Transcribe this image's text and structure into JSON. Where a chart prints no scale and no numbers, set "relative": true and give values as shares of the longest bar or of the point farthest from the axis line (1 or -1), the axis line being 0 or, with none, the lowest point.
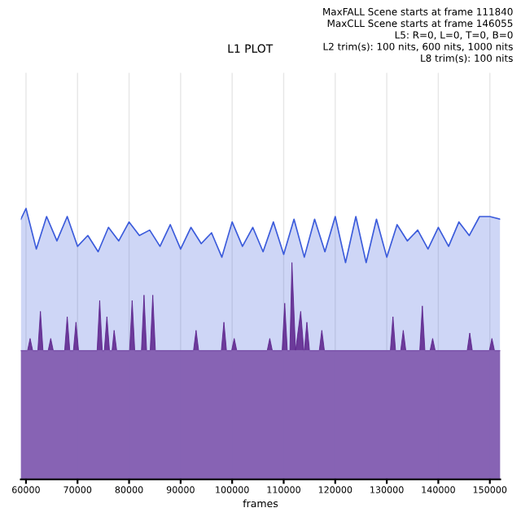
{
  "chart_data": {
    "type": "area",
    "title": "L1 PLOT",
    "xlabel": "frames",
    "relative": true,
    "grid": "x",
    "annotations": [
      "MaxFALL Scene starts at frame 111840",
      "MaxCLL Scene starts at frame 146055",
      "L5: R=0, L=0, T=0, B=0",
      "L2 trim(s): 100 nits, 600 nits, 1000 nits",
      "L8 trim(s): 100 nits"
    ],
    "xlim": [
      59000,
      152000
    ],
    "xticks": [
      60000,
      70000,
      80000,
      90000,
      100000,
      110000,
      120000,
      130000,
      140000,
      150000
    ],
    "series": [
      {
        "color": "#3b5bdb",
        "x": [
          59000,
          60000,
          62000,
          64000,
          66000,
          68000,
          70000,
          72000,
          74000,
          76000,
          78000,
          80000,
          82000,
          84000,
          86000,
          88000,
          90000,
          92000,
          94000,
          96000,
          98000,
          100000,
          102000,
          104000,
          106000,
          108000,
          110000,
          112000,
          114000,
          116000,
          118000,
          120000,
          122000,
          124000,
          126000,
          128000,
          130000,
          132000,
          134000,
          136000,
          138000,
          140000,
          142000,
          144000,
          146000,
          148000,
          150000,
          152000
        ],
        "values": [
          0.96,
          1,
          0.85,
          0.97,
          0.88,
          0.97,
          0.86,
          0.9,
          0.84,
          0.93,
          0.88,
          0.95,
          0.9,
          0.92,
          0.86,
          0.94,
          0.85,
          0.93,
          0.87,
          0.91,
          0.82,
          0.95,
          0.86,
          0.93,
          0.84,
          0.95,
          0.83,
          0.96,
          0.82,
          0.96,
          0.84,
          0.97,
          0.8,
          0.97,
          0.8,
          0.96,
          0.82,
          0.94,
          0.88,
          0.92,
          0.85,
          0.93,
          0.86,
          0.95,
          0.9,
          0.97,
          0.97,
          0.96
        ]
      },
      {
        "color": "#5a1f8a",
        "x": [
          59000,
          60300,
          60800,
          61300,
          62300,
          62800,
          63300,
          64300,
          64800,
          65300,
          67500,
          68000,
          68500,
          69200,
          69700,
          70200,
          73800,
          74300,
          74800,
          75200,
          75700,
          76200,
          76700,
          77100,
          77600,
          80100,
          80600,
          81100,
          82400,
          82900,
          83400,
          84100,
          84600,
          85100,
          92500,
          93000,
          93500,
          97900,
          98400,
          98900,
          99900,
          100400,
          100900,
          106800,
          107300,
          107800,
          109700,
          110200,
          110700,
          111200,
          111600,
          112300,
          113300,
          113900,
          114000,
          114500,
          115000,
          116900,
          117400,
          117900,
          130700,
          131200,
          131700,
          132700,
          133200,
          133700,
          136400,
          136900,
          137400,
          138400,
          138900,
          139400,
          145600,
          146100,
          146600,
          149900,
          150400,
          150900,
          152000
        ],
        "values": [
          0.475,
          0.475,
          0.52,
          0.475,
          0.475,
          0.62,
          0.475,
          0.475,
          0.52,
          0.475,
          0.475,
          0.6,
          0.475,
          0.475,
          0.58,
          0.475,
          0.475,
          0.66,
          0.475,
          0.475,
          0.6,
          0.475,
          0.475,
          0.55,
          0.475,
          0.475,
          0.66,
          0.475,
          0.475,
          0.68,
          0.475,
          0.475,
          0.68,
          0.475,
          0.475,
          0.55,
          0.475,
          0.475,
          0.58,
          0.475,
          0.475,
          0.52,
          0.475,
          0.475,
          0.52,
          0.475,
          0.475,
          0.65,
          0.475,
          0.475,
          0.8,
          0.475,
          0.62,
          0.475,
          0.475,
          0.58,
          0.475,
          0.475,
          0.55,
          0.475,
          0.475,
          0.6,
          0.475,
          0.475,
          0.55,
          0.475,
          0.475,
          0.64,
          0.475,
          0.475,
          0.52,
          0.475,
          0.475,
          0.54,
          0.475,
          0.475,
          0.52,
          0.475,
          0.475
        ]
      },
      {
        "color": "#8c6bb8",
        "x": [
          59000,
          152000
        ],
        "values": [
          0.475,
          0.475
        ]
      }
    ]
  }
}
